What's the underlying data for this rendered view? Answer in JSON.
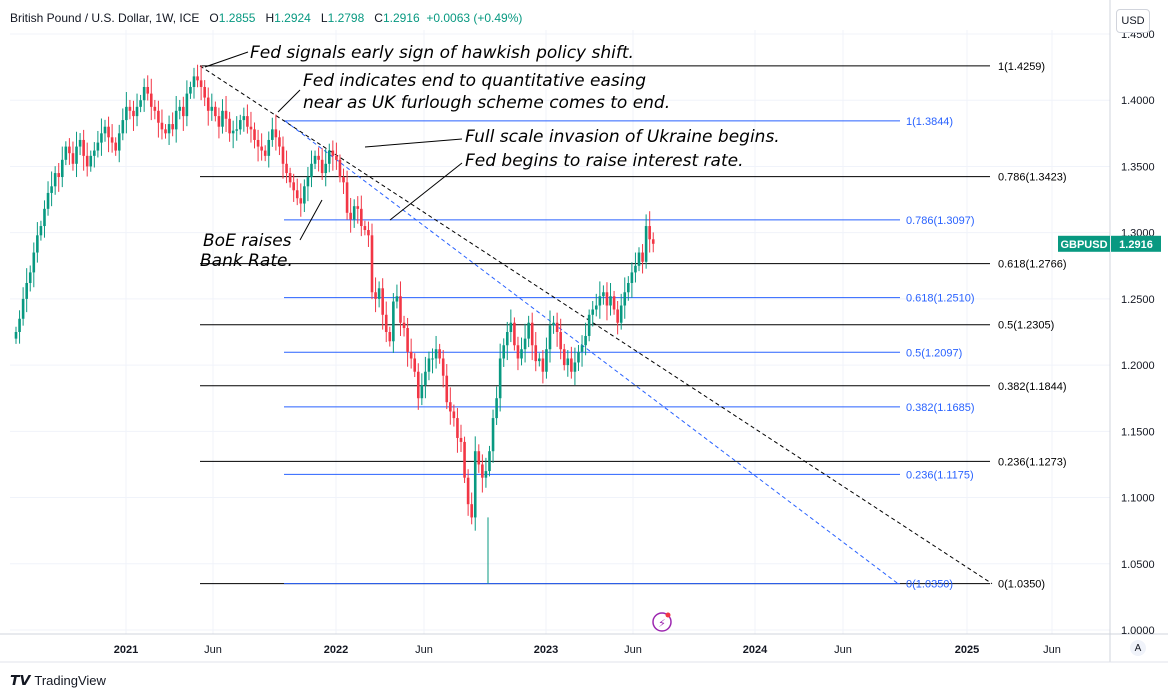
{
  "header": {
    "symbol": "British Pound / U.S. Dollar, 1W, ICE",
    "o_label": "O",
    "o": "1.2855",
    "h_label": "H",
    "h": "1.2924",
    "l_label": "L",
    "l": "1.2798",
    "c_label": "C",
    "c": "1.2916",
    "change": "+0.0063 (+0.49%)"
  },
  "currency": "USD",
  "brand": "TradingView",
  "auto_label": "A",
  "colors": {
    "up": "#089981",
    "down": "#f23645",
    "fib_black": "#000000",
    "fib_blue": "#2962ff",
    "price_tag": "#089981"
  },
  "chart_data": {
    "type": "candlestick",
    "timeframe": "1W",
    "price_label": {
      "name": "GBPUSD",
      "value": "1.2916"
    },
    "y_axis": {
      "min": 1.0,
      "max": 1.45,
      "ticks": [
        "1.4500",
        "1.4000",
        "1.3500",
        "1.3000",
        "1.2500",
        "1.2000",
        "1.1500",
        "1.1000",
        "1.0500",
        "1.0000"
      ]
    },
    "x_ticks": [
      {
        "label": "2021",
        "bold": true
      },
      {
        "label": "Jun",
        "bold": false
      },
      {
        "label": "2022",
        "bold": true
      },
      {
        "label": "Jun",
        "bold": false
      },
      {
        "label": "2023",
        "bold": true
      },
      {
        "label": "Jun",
        "bold": false
      },
      {
        "label": "2024",
        "bold": true
      },
      {
        "label": "Jun",
        "bold": false
      },
      {
        "label": "2025",
        "bold": true
      },
      {
        "label": "Jun",
        "bold": false
      }
    ],
    "fib_black": [
      {
        "label": "1(1.4259)",
        "value": 1.4259
      },
      {
        "label": "0.786(1.3423)",
        "value": 1.3423
      },
      {
        "label": "0.618(1.2766)",
        "value": 1.2766
      },
      {
        "label": "0.5(1.2305)",
        "value": 1.2305
      },
      {
        "label": "0.382(1.1844)",
        "value": 1.1844
      },
      {
        "label": "0.236(1.1273)",
        "value": 1.1273
      },
      {
        "label": "0(1.0350)",
        "value": 1.035
      }
    ],
    "fib_blue": [
      {
        "label": "1(1.3844)",
        "value": 1.3844
      },
      {
        "label": "0.786(1.3097)",
        "value": 1.3097
      },
      {
        "label": "0.618(1.2510)",
        "value": 1.251
      },
      {
        "label": "0.5(1.2097)",
        "value": 1.2097
      },
      {
        "label": "0.382(1.1685)",
        "value": 1.1685
      },
      {
        "label": "0.236(1.1175)",
        "value": 1.1175
      },
      {
        "label": "0(1.0350)",
        "value": 1.035
      }
    ],
    "trendlines": [
      {
        "color": "black",
        "from": {
          "date": "2021-06-01",
          "value": 1.4259
        },
        "to": {
          "date": "2025-03-01",
          "value": 1.035
        }
      },
      {
        "color": "blue",
        "from": {
          "date": "2021-10-15",
          "value": 1.3844
        },
        "to": {
          "date": "2025-01-15",
          "value": 1.035
        }
      }
    ],
    "annotations": [
      "Fed signals early sign of hawkish policy shift.",
      "Fed indicates end to quantitative easing",
      "near as UK furlough scheme comes to end.",
      "Full scale invasion of Ukraine begins.",
      "Fed begins to raise interest rate.",
      "BoE raises",
      "Bank Rate."
    ],
    "weekly_closes": [
      1.225,
      1.235,
      1.25,
      1.262,
      1.27,
      1.285,
      1.298,
      1.305,
      1.318,
      1.33,
      1.335,
      1.345,
      1.342,
      1.355,
      1.365,
      1.36,
      1.352,
      1.365,
      1.37,
      1.358,
      1.35,
      1.358,
      1.362,
      1.368,
      1.375,
      1.38,
      1.372,
      1.368,
      1.362,
      1.375,
      1.385,
      1.395,
      1.392,
      1.388,
      1.395,
      1.4,
      1.41,
      1.405,
      1.395,
      1.392,
      1.383,
      1.378,
      1.375,
      1.382,
      1.378,
      1.392,
      1.395,
      1.388,
      1.405,
      1.41,
      1.418,
      1.415,
      1.41,
      1.402,
      1.392,
      1.395,
      1.388,
      1.38,
      1.392,
      1.386,
      1.375,
      1.377,
      1.378,
      1.385,
      1.388,
      1.38,
      1.378,
      1.37,
      1.365,
      1.362,
      1.358,
      1.37,
      1.378,
      1.372,
      1.365,
      1.352,
      1.345,
      1.338,
      1.332,
      1.326,
      1.322,
      1.335,
      1.342,
      1.352,
      1.358,
      1.355,
      1.345,
      1.352,
      1.362,
      1.358,
      1.355,
      1.342,
      1.338,
      1.315,
      1.31,
      1.32,
      1.318,
      1.305,
      1.302,
      1.298,
      1.255,
      1.25,
      1.258,
      1.238,
      1.225,
      1.218,
      1.248,
      1.252,
      1.232,
      1.228,
      1.21,
      1.205,
      1.195,
      1.175,
      1.185,
      1.195,
      1.205,
      1.205,
      1.212,
      1.205,
      1.192,
      1.172,
      1.165,
      1.16,
      1.145,
      1.142,
      1.115,
      1.095,
      1.085,
      1.135,
      1.125,
      1.115,
      1.12,
      1.135,
      1.16,
      1.175,
      1.205,
      1.215,
      1.225,
      1.232,
      1.215,
      1.205,
      1.212,
      1.22,
      1.232,
      1.215,
      1.203,
      1.205,
      1.195,
      1.212,
      1.23,
      1.232,
      1.225,
      1.212,
      1.2,
      1.205,
      1.195,
      1.202,
      1.21,
      1.215,
      1.222,
      1.238,
      1.242,
      1.245,
      1.252,
      1.255,
      1.245,
      1.252,
      1.242,
      1.232,
      1.245,
      1.255,
      1.262,
      1.27,
      1.275,
      1.285,
      1.278,
      1.305,
      1.295,
      1.2916
    ]
  }
}
